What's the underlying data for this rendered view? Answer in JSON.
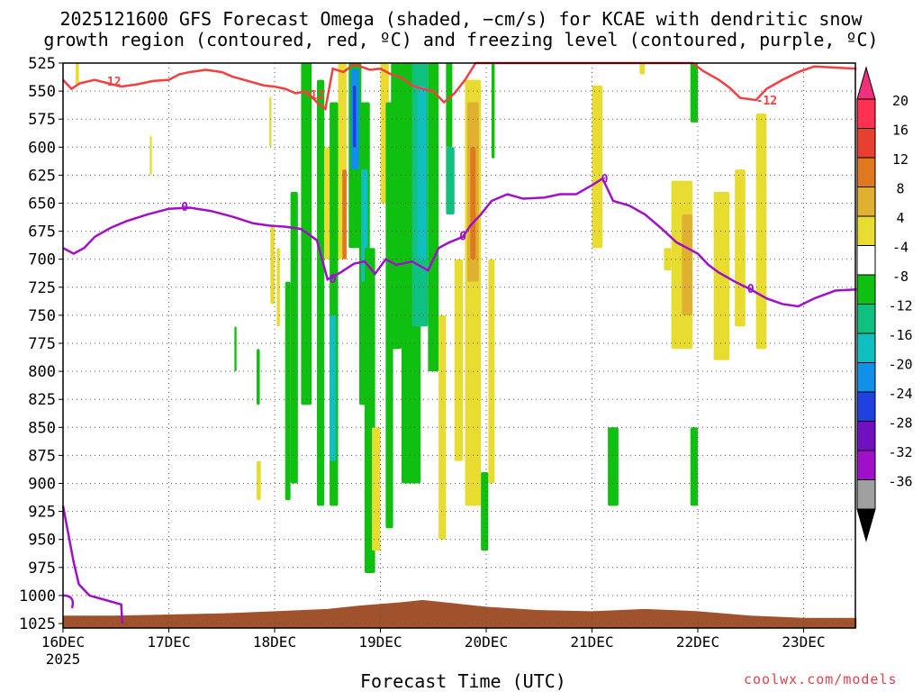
{
  "header": {
    "title_line1": "2025121600 GFS Forecast Omega (shaded, −cm/s) for KCAE with dendritic snow",
    "title_line2": "growth region (contoured, red, ºC) and freezing level (contoured, purple, ºC)"
  },
  "footer": {
    "xlabel": "Forecast Time (UTC)",
    "credit": "coolwx.com/models"
  },
  "chart_data": {
    "type": "heatmap",
    "station": "KCAE",
    "run": "2025121600",
    "y_axis": {
      "label": "",
      "ticks": [
        525,
        550,
        575,
        600,
        625,
        650,
        675,
        700,
        725,
        750,
        775,
        800,
        825,
        850,
        875,
        900,
        925,
        950,
        975,
        1000,
        1025
      ],
      "range": [
        525,
        1030
      ],
      "inverted": true
    },
    "x_axis": {
      "range_days": [
        16,
        23.5
      ],
      "ticks": [
        {
          "day": 16,
          "label": "16DEC",
          "sublabel": "2025"
        },
        {
          "day": 17,
          "label": "17DEC",
          "sublabel": ""
        },
        {
          "day": 18,
          "label": "18DEC",
          "sublabel": ""
        },
        {
          "day": 19,
          "label": "19DEC",
          "sublabel": ""
        },
        {
          "day": 20,
          "label": "20DEC",
          "sublabel": ""
        },
        {
          "day": 21,
          "label": "21DEC",
          "sublabel": ""
        },
        {
          "day": 22,
          "label": "22DEC",
          "sublabel": ""
        },
        {
          "day": 23,
          "label": "23DEC",
          "sublabel": ""
        }
      ]
    },
    "grid": true,
    "colorbar": {
      "levels": [
        {
          "color": "#ff3050",
          "label": "20"
        },
        {
          "color": "#e84030",
          "label": "16"
        },
        {
          "color": "#e07820",
          "label": "12"
        },
        {
          "color": "#e0b030",
          "label": "8"
        },
        {
          "color": "#e8dc30",
          "label": "4"
        },
        {
          "color": "#ffffff",
          "label": "-4"
        },
        {
          "color": "#10c010",
          "label": "-8"
        },
        {
          "color": "#10c080",
          "label": "-12"
        },
        {
          "color": "#10c0c0",
          "label": "-16"
        },
        {
          "color": "#1090e8",
          "label": "-20"
        },
        {
          "color": "#2040e0",
          "label": "-24"
        },
        {
          "color": "#7010c0",
          "label": "-28"
        },
        {
          "color": "#a010c8",
          "label": "-32"
        },
        {
          "color": "#a0a0a0",
          "label": "-36"
        }
      ],
      "top_triangle_color": "#f0307a",
      "bottom_triangle_color": "#000000"
    },
    "omega_patches": [
      {
        "day_start": 16.12,
        "day_end": 16.15,
        "p_top": 525,
        "p_bot": 545,
        "color": "#e8dc30"
      },
      {
        "day_start": 16.82,
        "day_end": 16.84,
        "p_top": 590,
        "p_bot": 625,
        "color": "#e8dc30"
      },
      {
        "day_start": 17.95,
        "day_end": 17.97,
        "p_top": 555,
        "p_bot": 600,
        "color": "#e8dc30"
      },
      {
        "day_start": 17.96,
        "day_end": 18.0,
        "p_top": 670,
        "p_bot": 740,
        "color": "#e8dc30"
      },
      {
        "day_start": 18.02,
        "day_end": 18.05,
        "p_top": 690,
        "p_bot": 760,
        "color": "#e8dc30"
      },
      {
        "day_start": 17.83,
        "day_end": 17.87,
        "p_top": 880,
        "p_bot": 915,
        "color": "#e8dc30"
      },
      {
        "day_start": 17.83,
        "day_end": 17.86,
        "p_top": 780,
        "p_bot": 830,
        "color": "#10c010"
      },
      {
        "day_start": 17.62,
        "day_end": 17.64,
        "p_top": 760,
        "p_bot": 800,
        "color": "#10c010"
      },
      {
        "day_start": 18.1,
        "day_end": 18.15,
        "p_top": 720,
        "p_bot": 915,
        "color": "#10c010"
      },
      {
        "day_start": 18.15,
        "day_end": 18.22,
        "p_top": 640,
        "p_bot": 900,
        "color": "#10c010"
      },
      {
        "day_start": 18.25,
        "day_end": 18.35,
        "p_top": 525,
        "p_bot": 830,
        "color": "#10c010"
      },
      {
        "day_start": 18.4,
        "day_end": 18.47,
        "p_top": 540,
        "p_bot": 920,
        "color": "#10c010"
      },
      {
        "day_start": 18.47,
        "day_end": 18.52,
        "p_top": 600,
        "p_bot": 700,
        "color": "#e8dc30"
      },
      {
        "day_start": 18.52,
        "day_end": 18.6,
        "p_top": 560,
        "p_bot": 920,
        "color": "#10c010"
      },
      {
        "day_start": 18.52,
        "day_end": 18.58,
        "p_top": 750,
        "p_bot": 880,
        "color": "#10c0c0"
      },
      {
        "day_start": 18.6,
        "day_end": 18.68,
        "p_top": 525,
        "p_bot": 700,
        "color": "#e8dc30"
      },
      {
        "day_start": 18.64,
        "day_end": 18.68,
        "p_top": 620,
        "p_bot": 700,
        "color": "#e07820"
      },
      {
        "day_start": 18.7,
        "day_end": 18.82,
        "p_top": 525,
        "p_bot": 690,
        "color": "#10c010"
      },
      {
        "day_start": 18.72,
        "day_end": 18.8,
        "p_top": 530,
        "p_bot": 620,
        "color": "#1090e8"
      },
      {
        "day_start": 18.74,
        "day_end": 18.77,
        "p_top": 545,
        "p_bot": 600,
        "color": "#2040e0"
      },
      {
        "day_start": 18.8,
        "day_end": 18.9,
        "p_top": 560,
        "p_bot": 830,
        "color": "#10c010"
      },
      {
        "day_start": 18.82,
        "day_end": 18.88,
        "p_top": 620,
        "p_bot": 720,
        "color": "#10c0c0"
      },
      {
        "day_start": 18.85,
        "day_end": 18.95,
        "p_top": 690,
        "p_bot": 980,
        "color": "#10c010"
      },
      {
        "day_start": 18.92,
        "day_end": 19.0,
        "p_top": 850,
        "p_bot": 960,
        "color": "#e8dc30"
      },
      {
        "day_start": 19.0,
        "day_end": 19.08,
        "p_top": 525,
        "p_bot": 650,
        "color": "#e8dc30"
      },
      {
        "day_start": 19.05,
        "day_end": 19.12,
        "p_top": 560,
        "p_bot": 940,
        "color": "#10c010"
      },
      {
        "day_start": 19.1,
        "day_end": 19.2,
        "p_top": 525,
        "p_bot": 780,
        "color": "#10c010"
      },
      {
        "day_start": 19.2,
        "day_end": 19.38,
        "p_top": 525,
        "p_bot": 900,
        "color": "#10c010"
      },
      {
        "day_start": 19.3,
        "day_end": 19.45,
        "p_top": 525,
        "p_bot": 760,
        "color": "#10c080"
      },
      {
        "day_start": 19.35,
        "day_end": 19.43,
        "p_top": 545,
        "p_bot": 700,
        "color": "#10c0c0"
      },
      {
        "day_start": 19.45,
        "day_end": 19.55,
        "p_top": 525,
        "p_bot": 800,
        "color": "#10c010"
      },
      {
        "day_start": 19.55,
        "day_end": 19.62,
        "p_top": 750,
        "p_bot": 950,
        "color": "#e8dc30"
      },
      {
        "day_start": 19.62,
        "day_end": 19.68,
        "p_top": 525,
        "p_bot": 600,
        "color": "#10c010"
      },
      {
        "day_start": 19.62,
        "day_end": 19.7,
        "p_top": 600,
        "p_bot": 660,
        "color": "#10c080"
      },
      {
        "day_start": 19.7,
        "day_end": 19.78,
        "p_top": 700,
        "p_bot": 880,
        "color": "#e8dc30"
      },
      {
        "day_start": 19.8,
        "day_end": 19.95,
        "p_top": 540,
        "p_bot": 920,
        "color": "#e8dc30"
      },
      {
        "day_start": 19.82,
        "day_end": 19.93,
        "p_top": 560,
        "p_bot": 720,
        "color": "#e0b030"
      },
      {
        "day_start": 19.85,
        "day_end": 19.9,
        "p_top": 600,
        "p_bot": 700,
        "color": "#e07820"
      },
      {
        "day_start": 19.95,
        "day_end": 20.02,
        "p_top": 890,
        "p_bot": 960,
        "color": "#10c010"
      },
      {
        "day_start": 20.02,
        "day_end": 20.08,
        "p_top": 700,
        "p_bot": 900,
        "color": "#e8dc30"
      },
      {
        "day_start": 20.05,
        "day_end": 20.08,
        "p_top": 525,
        "p_bot": 610,
        "color": "#10c010"
      },
      {
        "day_start": 21.0,
        "day_end": 21.1,
        "p_top": 545,
        "p_bot": 690,
        "color": "#e8dc30"
      },
      {
        "day_start": 21.15,
        "day_end": 21.25,
        "p_top": 850,
        "p_bot": 920,
        "color": "#10c010"
      },
      {
        "day_start": 21.45,
        "day_end": 21.5,
        "p_top": 525,
        "p_bot": 535,
        "color": "#e8dc30"
      },
      {
        "day_start": 21.68,
        "day_end": 21.75,
        "p_top": 690,
        "p_bot": 710,
        "color": "#e8dc30"
      },
      {
        "day_start": 21.75,
        "day_end": 21.95,
        "p_top": 630,
        "p_bot": 780,
        "color": "#e8dc30"
      },
      {
        "day_start": 21.85,
        "day_end": 21.95,
        "p_top": 660,
        "p_bot": 750,
        "color": "#e0b030"
      },
      {
        "day_start": 21.93,
        "day_end": 22.0,
        "p_top": 525,
        "p_bot": 578,
        "color": "#10c010"
      },
      {
        "day_start": 21.93,
        "day_end": 22.0,
        "p_top": 850,
        "p_bot": 920,
        "color": "#10c010"
      },
      {
        "day_start": 22.15,
        "day_end": 22.3,
        "p_top": 640,
        "p_bot": 790,
        "color": "#e8dc30"
      },
      {
        "day_start": 22.35,
        "day_end": 22.45,
        "p_top": 620,
        "p_bot": 760,
        "color": "#e8dc30"
      },
      {
        "day_start": 22.55,
        "day_end": 22.65,
        "p_top": 570,
        "p_bot": 780,
        "color": "#e8dc30"
      }
    ],
    "dgz_contour": {
      "color": "#f04040",
      "label": "-12",
      "points": [
        [
          16.0,
          540
        ],
        [
          16.08,
          548
        ],
        [
          16.16,
          543
        ],
        [
          16.3,
          540
        ],
        [
          16.55,
          546
        ],
        [
          16.7,
          544
        ],
        [
          16.85,
          541
        ],
        [
          17.0,
          540
        ],
        [
          17.1,
          535
        ],
        [
          17.2,
          533
        ],
        [
          17.35,
          531
        ],
        [
          17.5,
          533
        ],
        [
          17.6,
          537
        ],
        [
          17.75,
          541
        ],
        [
          17.9,
          545
        ],
        [
          18.0,
          546
        ],
        [
          18.1,
          548
        ],
        [
          18.2,
          552
        ],
        [
          18.3,
          550
        ],
        [
          18.4,
          560
        ],
        [
          18.48,
          566
        ],
        [
          18.55,
          530
        ],
        [
          18.65,
          533
        ],
        [
          18.75,
          526
        ],
        [
          18.9,
          531
        ],
        [
          19.0,
          530
        ],
        [
          19.1,
          535
        ],
        [
          19.2,
          538
        ],
        [
          19.3,
          545
        ],
        [
          19.4,
          548
        ],
        [
          19.5,
          550
        ],
        [
          19.6,
          560
        ],
        [
          19.7,
          552
        ],
        [
          19.8,
          540
        ],
        [
          19.9,
          525
        ],
        [
          21.95,
          525
        ],
        [
          22.05,
          532
        ],
        [
          22.2,
          540
        ],
        [
          22.3,
          547
        ],
        [
          22.4,
          556
        ],
        [
          22.55,
          558
        ],
        [
          22.65,
          548
        ],
        [
          22.8,
          540
        ],
        [
          22.95,
          533
        ],
        [
          23.1,
          528
        ],
        [
          23.3,
          529
        ],
        [
          23.5,
          530
        ]
      ]
    },
    "freezing_contour": {
      "color": "#a010c8",
      "label": "0",
      "points": [
        [
          16.0,
          690
        ],
        [
          16.1,
          695
        ],
        [
          16.2,
          690
        ],
        [
          16.3,
          680
        ],
        [
          16.45,
          672
        ],
        [
          16.6,
          666
        ],
        [
          16.8,
          660
        ],
        [
          17.0,
          655
        ],
        [
          17.2,
          654
        ],
        [
          17.4,
          657
        ],
        [
          17.6,
          662
        ],
        [
          17.8,
          668
        ],
        [
          17.95,
          670
        ],
        [
          18.1,
          671
        ],
        [
          18.25,
          673
        ],
        [
          18.4,
          683
        ],
        [
          18.5,
          718
        ],
        [
          18.62,
          712
        ],
        [
          18.75,
          704
        ],
        [
          18.85,
          702
        ],
        [
          18.95,
          713
        ],
        [
          19.05,
          700
        ],
        [
          19.15,
          705
        ],
        [
          19.3,
          702
        ],
        [
          19.45,
          710
        ],
        [
          19.55,
          690
        ],
        [
          19.65,
          685
        ],
        [
          19.78,
          680
        ],
        [
          19.85,
          670
        ],
        [
          19.95,
          660
        ],
        [
          20.05,
          648
        ],
        [
          20.2,
          642
        ],
        [
          20.35,
          646
        ],
        [
          20.55,
          645
        ],
        [
          20.7,
          642
        ],
        [
          20.85,
          642
        ],
        [
          21.0,
          634
        ],
        [
          21.1,
          628
        ],
        [
          21.2,
          648
        ],
        [
          21.35,
          652
        ],
        [
          21.5,
          660
        ],
        [
          21.65,
          672
        ],
        [
          21.8,
          685
        ],
        [
          21.9,
          690
        ],
        [
          22.0,
          695
        ],
        [
          22.1,
          705
        ],
        [
          22.2,
          712
        ],
        [
          22.35,
          720
        ],
        [
          22.5,
          727
        ],
        [
          22.65,
          735
        ],
        [
          22.8,
          740
        ],
        [
          22.95,
          742
        ],
        [
          23.1,
          735
        ],
        [
          23.3,
          728
        ],
        [
          23.5,
          727
        ]
      ]
    },
    "freezing_contour_lower": {
      "color": "#a010c8",
      "points": [
        [
          16.0,
          920
        ],
        [
          16.05,
          945
        ],
        [
          16.1,
          970
        ],
        [
          16.15,
          990
        ],
        [
          16.25,
          1000
        ],
        [
          16.4,
          1004
        ],
        [
          16.55,
          1008
        ],
        [
          16.56,
          1025
        ]
      ]
    },
    "terrain": {
      "color": "#a0522d",
      "points": [
        [
          16.0,
          1018
        ],
        [
          16.5,
          1018
        ],
        [
          17.0,
          1017
        ],
        [
          17.5,
          1016
        ],
        [
          18.0,
          1014
        ],
        [
          18.5,
          1012
        ],
        [
          18.8,
          1009
        ],
        [
          19.2,
          1006
        ],
        [
          19.4,
          1004
        ],
        [
          19.6,
          1006
        ],
        [
          20.0,
          1010
        ],
        [
          20.5,
          1013
        ],
        [
          21.0,
          1014
        ],
        [
          21.5,
          1012
        ],
        [
          22.0,
          1014
        ],
        [
          22.5,
          1018
        ],
        [
          23.0,
          1020
        ],
        [
          23.5,
          1020
        ]
      ]
    }
  }
}
